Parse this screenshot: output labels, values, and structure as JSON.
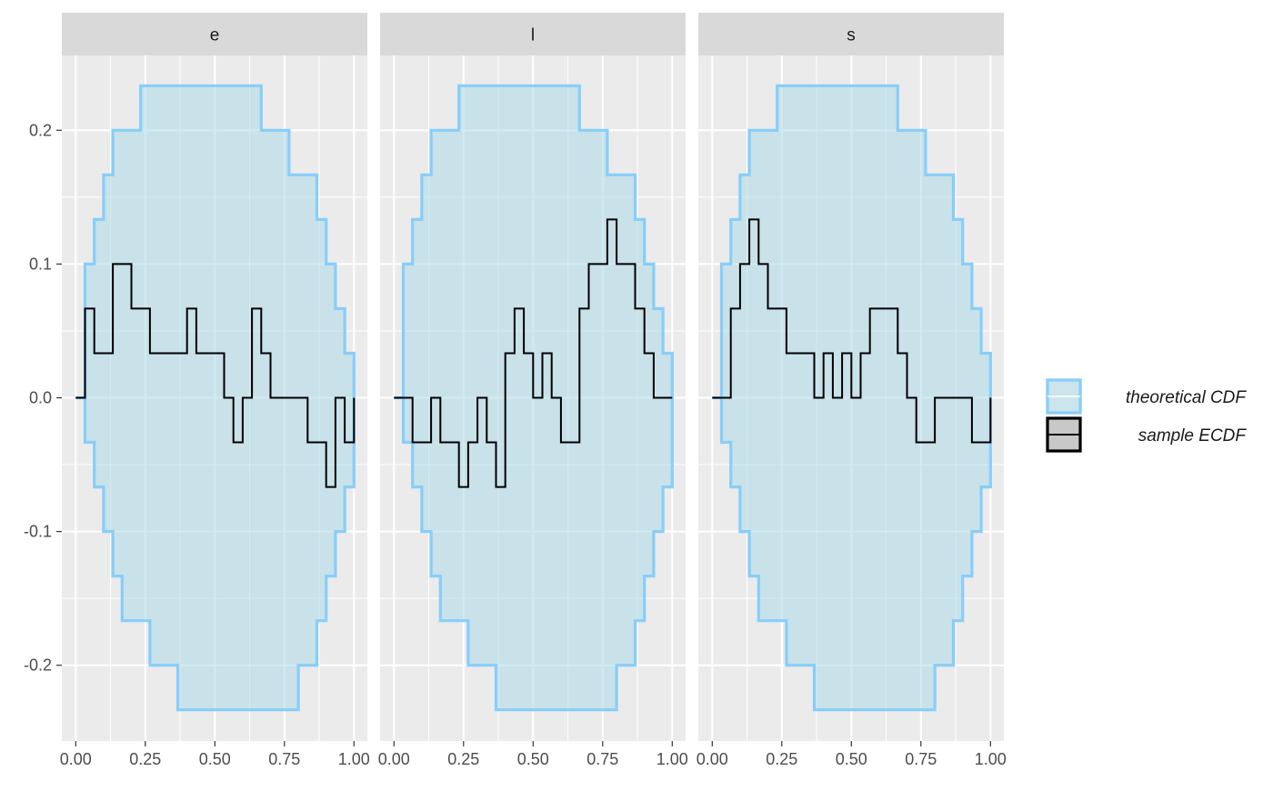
{
  "chart_data": {
    "type": "line",
    "facet_variable_levels": [
      "e",
      "l",
      "s"
    ],
    "xlim": [
      0,
      1
    ],
    "ylim": [
      -0.2333,
      0.2333
    ],
    "x_ticks": [
      0,
      0.25,
      0.5,
      0.75,
      1
    ],
    "x_tick_labels": [
      "0.00",
      "0.25",
      "0.50",
      "0.75",
      "1.00"
    ],
    "y_ticks": [
      -0.2,
      -0.1,
      0.0,
      0.1,
      0.2
    ],
    "y_tick_labels": [
      "-0.2",
      "-0.1",
      "0.0",
      "0.1",
      "0.2"
    ],
    "grid": true,
    "legend_position": "right",
    "legend": [
      {
        "label": "theoretical CDF",
        "color": "#87cefa",
        "fill": "#add8e6"
      },
      {
        "label": "sample ECDF",
        "color": "#000000",
        "fill": "#c8c8c8"
      }
    ],
    "band": {
      "name": "theoretical CDF",
      "x": [
        0.0,
        0.0333,
        0.0667,
        0.1,
        0.1333,
        0.1667,
        0.2,
        0.2333,
        0.2667,
        0.3,
        0.3333,
        0.3667,
        0.4,
        0.4333,
        0.4667,
        0.5,
        0.5333,
        0.5667,
        0.6,
        0.6333,
        0.6667,
        0.7,
        0.7333,
        0.7667,
        0.8,
        0.8333,
        0.8667,
        0.9,
        0.9333,
        0.9667,
        1.0
      ],
      "upper": [
        0.0,
        0.1,
        0.1333,
        0.1667,
        0.2,
        0.2,
        0.2,
        0.2333,
        0.2333,
        0.2333,
        0.2333,
        0.2333,
        0.2333,
        0.2333,
        0.2333,
        0.2333,
        0.2333,
        0.2333,
        0.2333,
        0.2333,
        0.2,
        0.2,
        0.2,
        0.1667,
        0.1667,
        0.1667,
        0.1333,
        0.1,
        0.0667,
        0.0333,
        0.0
      ],
      "lower": [
        0.0,
        -0.0333,
        -0.0667,
        -0.1,
        -0.1333,
        -0.1667,
        -0.1667,
        -0.1667,
        -0.2,
        -0.2,
        -0.2,
        -0.2333,
        -0.2333,
        -0.2333,
        -0.2333,
        -0.2333,
        -0.2333,
        -0.2333,
        -0.2333,
        -0.2333,
        -0.2333,
        -0.2333,
        -0.2333,
        -0.2333,
        -0.2,
        -0.2,
        -0.1667,
        -0.1333,
        -0.1,
        -0.0667,
        0.0
      ]
    },
    "series": [
      {
        "panel": "e",
        "name": "sample ECDF",
        "x": [
          0.0,
          0.0333,
          0.0667,
          0.1,
          0.1333,
          0.1667,
          0.2,
          0.2333,
          0.2667,
          0.3,
          0.3333,
          0.3667,
          0.4,
          0.4333,
          0.4667,
          0.5,
          0.5333,
          0.5667,
          0.6,
          0.6333,
          0.6667,
          0.7,
          0.7333,
          0.7667,
          0.8,
          0.8333,
          0.8667,
          0.9,
          0.9333,
          0.9667,
          1.0
        ],
        "y": [
          0.0,
          0.0667,
          0.0333,
          0.0333,
          0.1,
          0.1,
          0.0667,
          0.0667,
          0.0333,
          0.0333,
          0.0333,
          0.0333,
          0.0667,
          0.0333,
          0.0333,
          0.0333,
          0.0,
          -0.0333,
          0.0,
          0.0667,
          0.0333,
          0.0,
          0.0,
          0.0,
          0.0,
          -0.0333,
          -0.0333,
          -0.0667,
          0.0,
          -0.0333,
          0.0
        ]
      },
      {
        "panel": "l",
        "name": "sample ECDF",
        "x": [
          0.0,
          0.0333,
          0.0667,
          0.1,
          0.1333,
          0.1667,
          0.2,
          0.2333,
          0.2667,
          0.3,
          0.3333,
          0.3667,
          0.4,
          0.4333,
          0.4667,
          0.5,
          0.5333,
          0.5667,
          0.6,
          0.6333,
          0.6667,
          0.7,
          0.7333,
          0.7667,
          0.8,
          0.8333,
          0.8667,
          0.9,
          0.9333,
          0.9667,
          1.0
        ],
        "y": [
          0.0,
          0.0,
          -0.0333,
          -0.0333,
          0.0,
          -0.0333,
          -0.0333,
          -0.0667,
          -0.0333,
          0.0,
          -0.0333,
          -0.0667,
          0.0333,
          0.0667,
          0.0333,
          0.0,
          0.0333,
          0.0,
          -0.0333,
          -0.0333,
          0.0667,
          0.1,
          0.1,
          0.1333,
          0.1,
          0.1,
          0.0667,
          0.0333,
          0.0,
          0.0,
          0.0
        ]
      },
      {
        "panel": "s",
        "name": "sample ECDF",
        "x": [
          0.0,
          0.0333,
          0.0667,
          0.1,
          0.1333,
          0.1667,
          0.2,
          0.2333,
          0.2667,
          0.3,
          0.3333,
          0.3667,
          0.4,
          0.4333,
          0.4667,
          0.5,
          0.5333,
          0.5667,
          0.6,
          0.6333,
          0.6667,
          0.7,
          0.7333,
          0.7667,
          0.8,
          0.8333,
          0.8667,
          0.9,
          0.9333,
          0.9667,
          1.0
        ],
        "y": [
          0.0,
          0.0,
          0.0667,
          0.1,
          0.1333,
          0.1,
          0.0667,
          0.0667,
          0.0333,
          0.0333,
          0.0333,
          0.0,
          0.0333,
          0.0,
          0.0333,
          0.0,
          0.0333,
          0.0667,
          0.0667,
          0.0667,
          0.0333,
          0.0,
          -0.0333,
          -0.0333,
          0.0,
          0.0,
          0.0,
          0.0,
          -0.0333,
          -0.0333,
          0.0
        ]
      }
    ]
  }
}
